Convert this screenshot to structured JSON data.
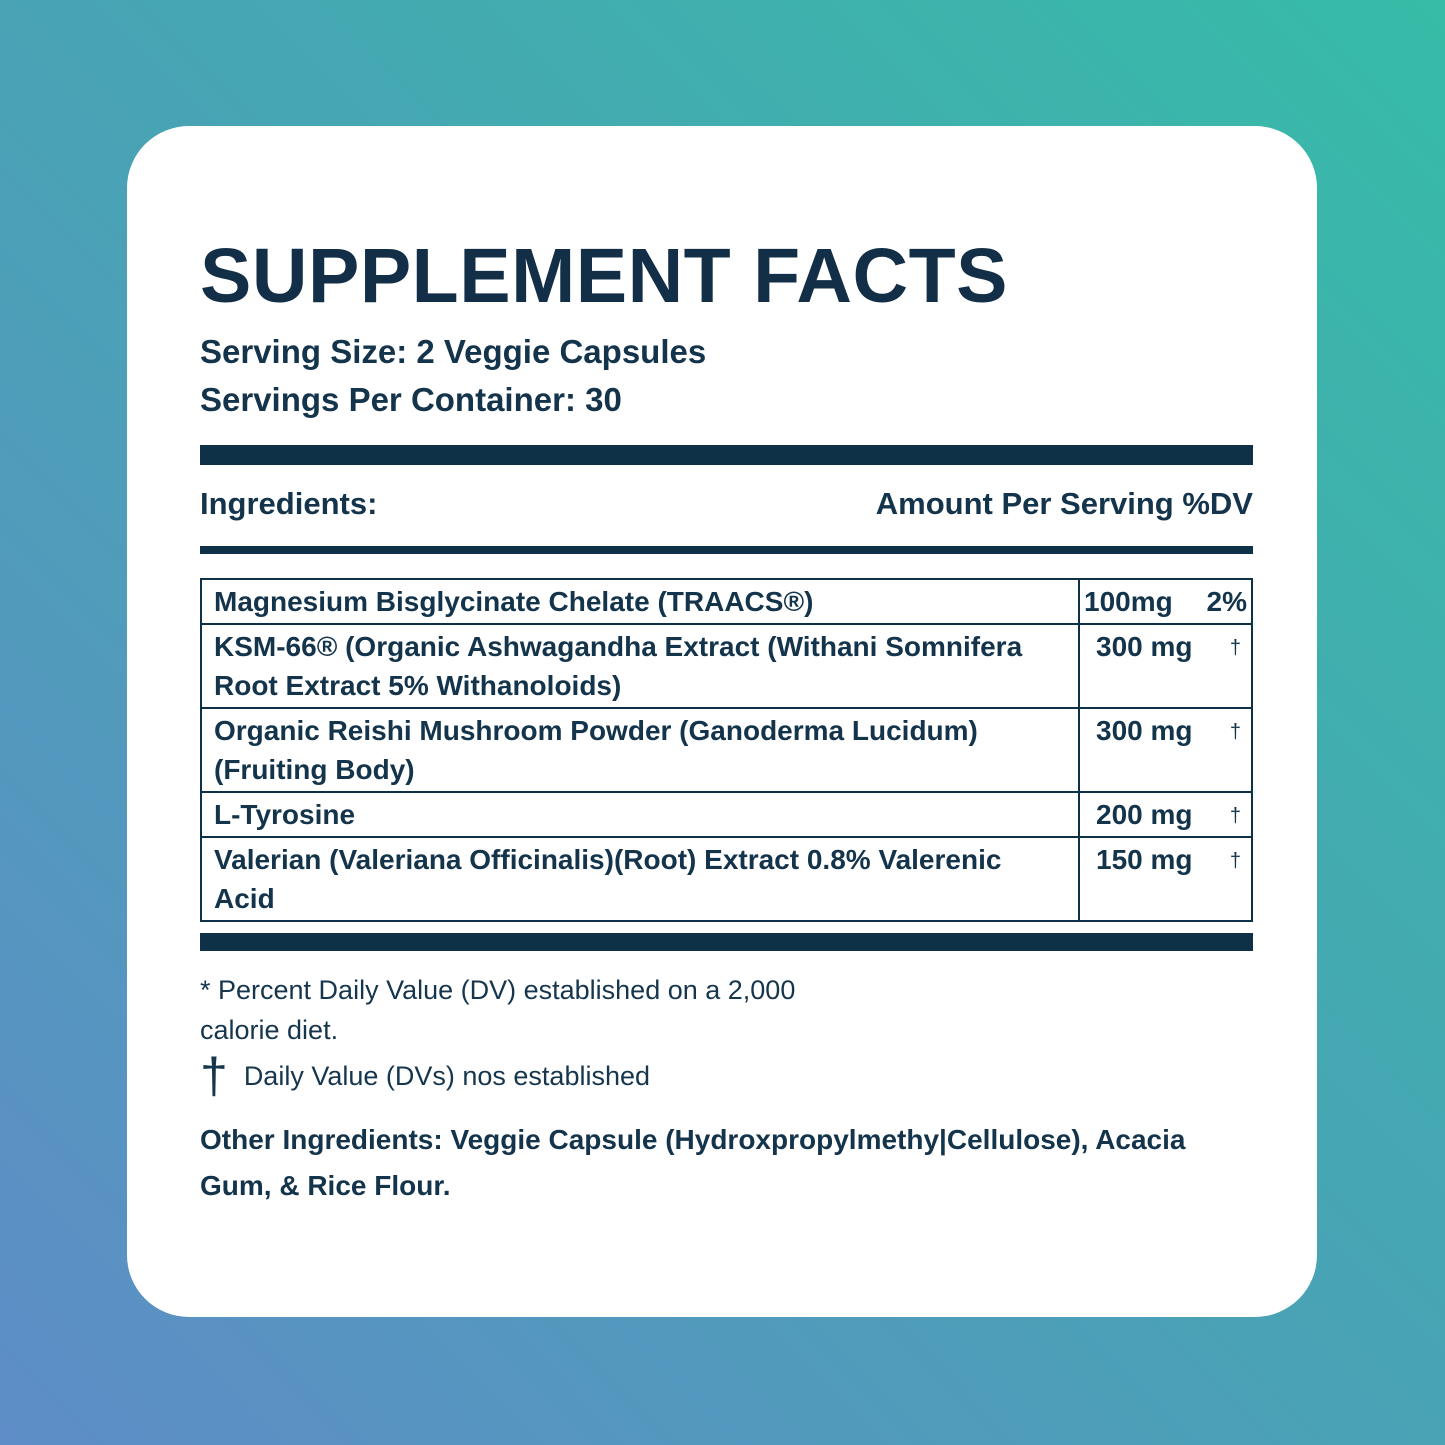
{
  "label": {
    "title": "SUPPLEMENT FACTS",
    "serving_size": "Serving Size: 2 Veggie Capsules",
    "servings_per_container": "Servings Per Container: 30",
    "columns": {
      "ingredients": "Ingredients:",
      "amount": "Amount Per Serving %DV"
    }
  },
  "table": {
    "rows": [
      {
        "name": "Magnesium Bisglycinate Chelate (TRAACS®)",
        "amount": "100mg",
        "dv": "2%"
      },
      {
        "name": "KSM-66® (Organic Ashwagandha Extract (Withani Somnifera Root Extract 5% Withanoloids)",
        "amount": "300 mg",
        "dv": "†"
      },
      {
        "name": "Organic Reishi Mushroom Powder (Ganoderma Lucidum) (Fruiting Body)",
        "amount": "300 mg",
        "dv": "†"
      },
      {
        "name": "L-Tyrosine",
        "amount": "200 mg",
        "dv": "†"
      },
      {
        "name": "Valerian (Valeriana Officinalis)(Root) Extract 0.8% Valerenic Acid",
        "amount": "150 mg",
        "dv": "†"
      }
    ]
  },
  "footnotes": {
    "dv_line1": "* Percent Daily Value (DV) established on a 2,000",
    "dv_line2": "calorie diet.",
    "dagger_symbol": "†",
    "dagger_note": "Daily Value (DVs) nos established",
    "other_ingredients": "Other Ingredients: Veggie Capsule (Hydroxpropylmethy|Cellulose), Acacia Gum, & Rice Flour."
  },
  "colors": {
    "navy_text": "#14344c",
    "navy_bar": "#0e3148",
    "card_bg": "#ffffff",
    "gradient_bottom_left": "#5e8dc7",
    "gradient_mid": "#48a4b4",
    "gradient_top_right": "#36bca7"
  }
}
